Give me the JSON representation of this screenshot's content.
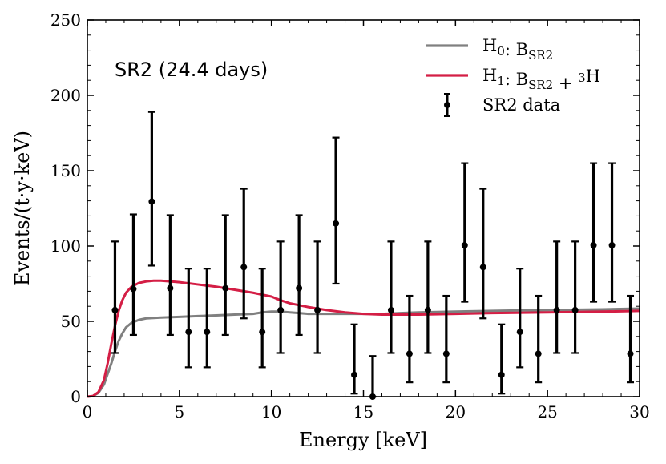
{
  "chart_data": {
    "type": "line",
    "title": "",
    "annotation": "SR2 (24.4 days)",
    "xlabel": "Energy [keV]",
    "ylabel": "Events/(t·y·keV)",
    "xlim": [
      0,
      30
    ],
    "ylim": [
      0,
      250
    ],
    "xticks": [
      0,
      5,
      10,
      15,
      20,
      25,
      30
    ],
    "yticks": [
      0,
      50,
      100,
      150,
      200,
      250
    ],
    "legend_position": "top-right",
    "legend": [
      {
        "base": "H",
        "sub": "0",
        "text": ": B",
        "sub2": "SR2",
        "tail": "",
        "color": "#808080",
        "kind": "line"
      },
      {
        "base": "H",
        "sub": "1",
        "text": ": B",
        "sub2": "SR2",
        "tail": " + ",
        "sup": "3",
        "tail2": "H",
        "color": "#d41e45",
        "kind": "line"
      },
      {
        "text": "SR2 data",
        "color": "#000000",
        "kind": "errorbar"
      }
    ],
    "series": [
      {
        "name": "H0: B_SR2",
        "color": "#808080",
        "x": [
          0,
          0.3,
          0.6,
          0.9,
          1.1,
          1.3,
          1.5,
          1.7,
          1.9,
          2.1,
          2.4,
          2.8,
          3.2,
          4,
          5,
          6,
          7,
          8,
          9,
          9.5,
          10,
          10.5,
          11,
          11.5,
          12,
          13,
          14,
          15,
          16,
          17,
          18,
          20,
          22,
          25,
          28,
          30
        ],
        "y": [
          0,
          0.4,
          2.5,
          8,
          15,
          22,
          30,
          37,
          42,
          46,
          49,
          51,
          52,
          52.5,
          53,
          53.5,
          54,
          54.5,
          55,
          56,
          56.5,
          56.5,
          56,
          55.5,
          55,
          55,
          55,
          55,
          55,
          55.5,
          56,
          56.5,
          57,
          57.5,
          58,
          58.5
        ]
      },
      {
        "name": "H1: B_SR2 + 3H",
        "color": "#d41e45",
        "x": [
          0,
          0.3,
          0.6,
          0.9,
          1.1,
          1.3,
          1.5,
          1.7,
          1.9,
          2.1,
          2.4,
          2.8,
          3.2,
          3.6,
          4,
          4.5,
          5,
          6,
          7,
          8,
          9,
          10,
          10.5,
          11,
          12,
          13,
          14,
          15,
          16,
          17,
          18,
          20,
          22,
          25,
          28,
          30
        ],
        "y": [
          0,
          0.4,
          3,
          11,
          22,
          35,
          47,
          57,
          64,
          69,
          73,
          75.5,
          76.5,
          77,
          77,
          76.5,
          76,
          74.5,
          73,
          71,
          69,
          66.5,
          64,
          62,
          59.5,
          57.5,
          56,
          55,
          54.5,
          54.5,
          54.5,
          55,
          55.5,
          56,
          56.5,
          57
        ]
      }
    ],
    "data_points": [
      {
        "x": 1.5,
        "y": 57.5,
        "lo": 29,
        "hi": 103
      },
      {
        "x": 2.5,
        "y": 71.5,
        "lo": 41,
        "hi": 121
      },
      {
        "x": 3.5,
        "y": 129.5,
        "lo": 87,
        "hi": 189
      },
      {
        "x": 4.5,
        "y": 72,
        "lo": 41,
        "hi": 120.5
      },
      {
        "x": 5.5,
        "y": 43,
        "lo": 19.5,
        "hi": 85
      },
      {
        "x": 6.5,
        "y": 43,
        "lo": 19.5,
        "hi": 85
      },
      {
        "x": 7.5,
        "y": 72,
        "lo": 41,
        "hi": 120.5
      },
      {
        "x": 8.5,
        "y": 86,
        "lo": 52,
        "hi": 138
      },
      {
        "x": 9.5,
        "y": 43,
        "lo": 19.5,
        "hi": 85
      },
      {
        "x": 10.5,
        "y": 57.5,
        "lo": 29,
        "hi": 103
      },
      {
        "x": 11.5,
        "y": 72,
        "lo": 41,
        "hi": 120.5
      },
      {
        "x": 12.5,
        "y": 57.5,
        "lo": 29,
        "hi": 103
      },
      {
        "x": 13.5,
        "y": 115,
        "lo": 75,
        "hi": 172
      },
      {
        "x": 14.5,
        "y": 14.5,
        "lo": 2,
        "hi": 48
      },
      {
        "x": 15.5,
        "y": 0,
        "lo": 0,
        "hi": 27
      },
      {
        "x": 16.5,
        "y": 57.5,
        "lo": 29,
        "hi": 103
      },
      {
        "x": 17.5,
        "y": 28.5,
        "lo": 9.5,
        "hi": 67
      },
      {
        "x": 18.5,
        "y": 57.5,
        "lo": 29,
        "hi": 103
      },
      {
        "x": 19.5,
        "y": 28.5,
        "lo": 9.5,
        "hi": 67
      },
      {
        "x": 20.5,
        "y": 100.5,
        "lo": 63,
        "hi": 155
      },
      {
        "x": 21.5,
        "y": 86,
        "lo": 52,
        "hi": 138
      },
      {
        "x": 22.5,
        "y": 14.5,
        "lo": 2,
        "hi": 48
      },
      {
        "x": 23.5,
        "y": 43,
        "lo": 19.5,
        "hi": 85
      },
      {
        "x": 24.5,
        "y": 28.5,
        "lo": 9.5,
        "hi": 67
      },
      {
        "x": 25.5,
        "y": 57.5,
        "lo": 29,
        "hi": 103
      },
      {
        "x": 26.5,
        "y": 57.5,
        "lo": 29,
        "hi": 103
      },
      {
        "x": 27.5,
        "y": 100.5,
        "lo": 63,
        "hi": 155
      },
      {
        "x": 28.5,
        "y": 100.5,
        "lo": 63,
        "hi": 155
      },
      {
        "x": 29.5,
        "y": 28.5,
        "lo": 9.5,
        "hi": 67
      }
    ]
  }
}
